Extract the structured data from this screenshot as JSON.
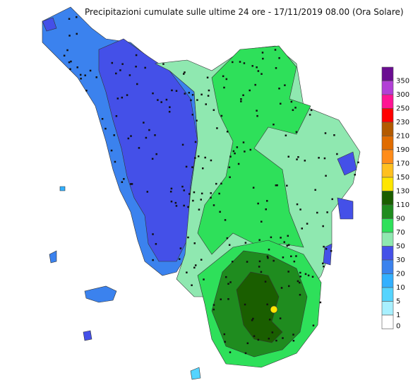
{
  "title": "Precipitazioni cumulate sulle ultime 24 ore - 17/11/2019 08.00 (Ora Solare)",
  "legend": {
    "items": [
      {
        "label": "350",
        "color": "#6a0d91"
      },
      {
        "label": "300",
        "color": "#b23fd6"
      },
      {
        "label": "250",
        "color": "#ff1493"
      },
      {
        "label": "230",
        "color": "#ff0000"
      },
      {
        "label": "210",
        "color": "#b35a00"
      },
      {
        "label": "190",
        "color": "#e06c00"
      },
      {
        "label": "170",
        "color": "#ff8c1a"
      },
      {
        "label": "150",
        "color": "#ffc020"
      },
      {
        "label": "130",
        "color": "#ffe600"
      },
      {
        "label": "110",
        "color": "#1a5e00"
      },
      {
        "label": "90",
        "color": "#1f8c1f"
      },
      {
        "label": "70",
        "color": "#2ee05a"
      },
      {
        "label": "50",
        "color": "#8fe8b0"
      },
      {
        "label": "30",
        "color": "#4450e8"
      },
      {
        "label": "20",
        "color": "#3b82ee"
      },
      {
        "label": "10",
        "color": "#33b0ff"
      },
      {
        "label": "5",
        "color": "#55d4ff"
      },
      {
        "label": "1",
        "color": "#a8f0ff"
      },
      {
        "label": "0",
        "color": "#ffffff"
      }
    ]
  }
}
